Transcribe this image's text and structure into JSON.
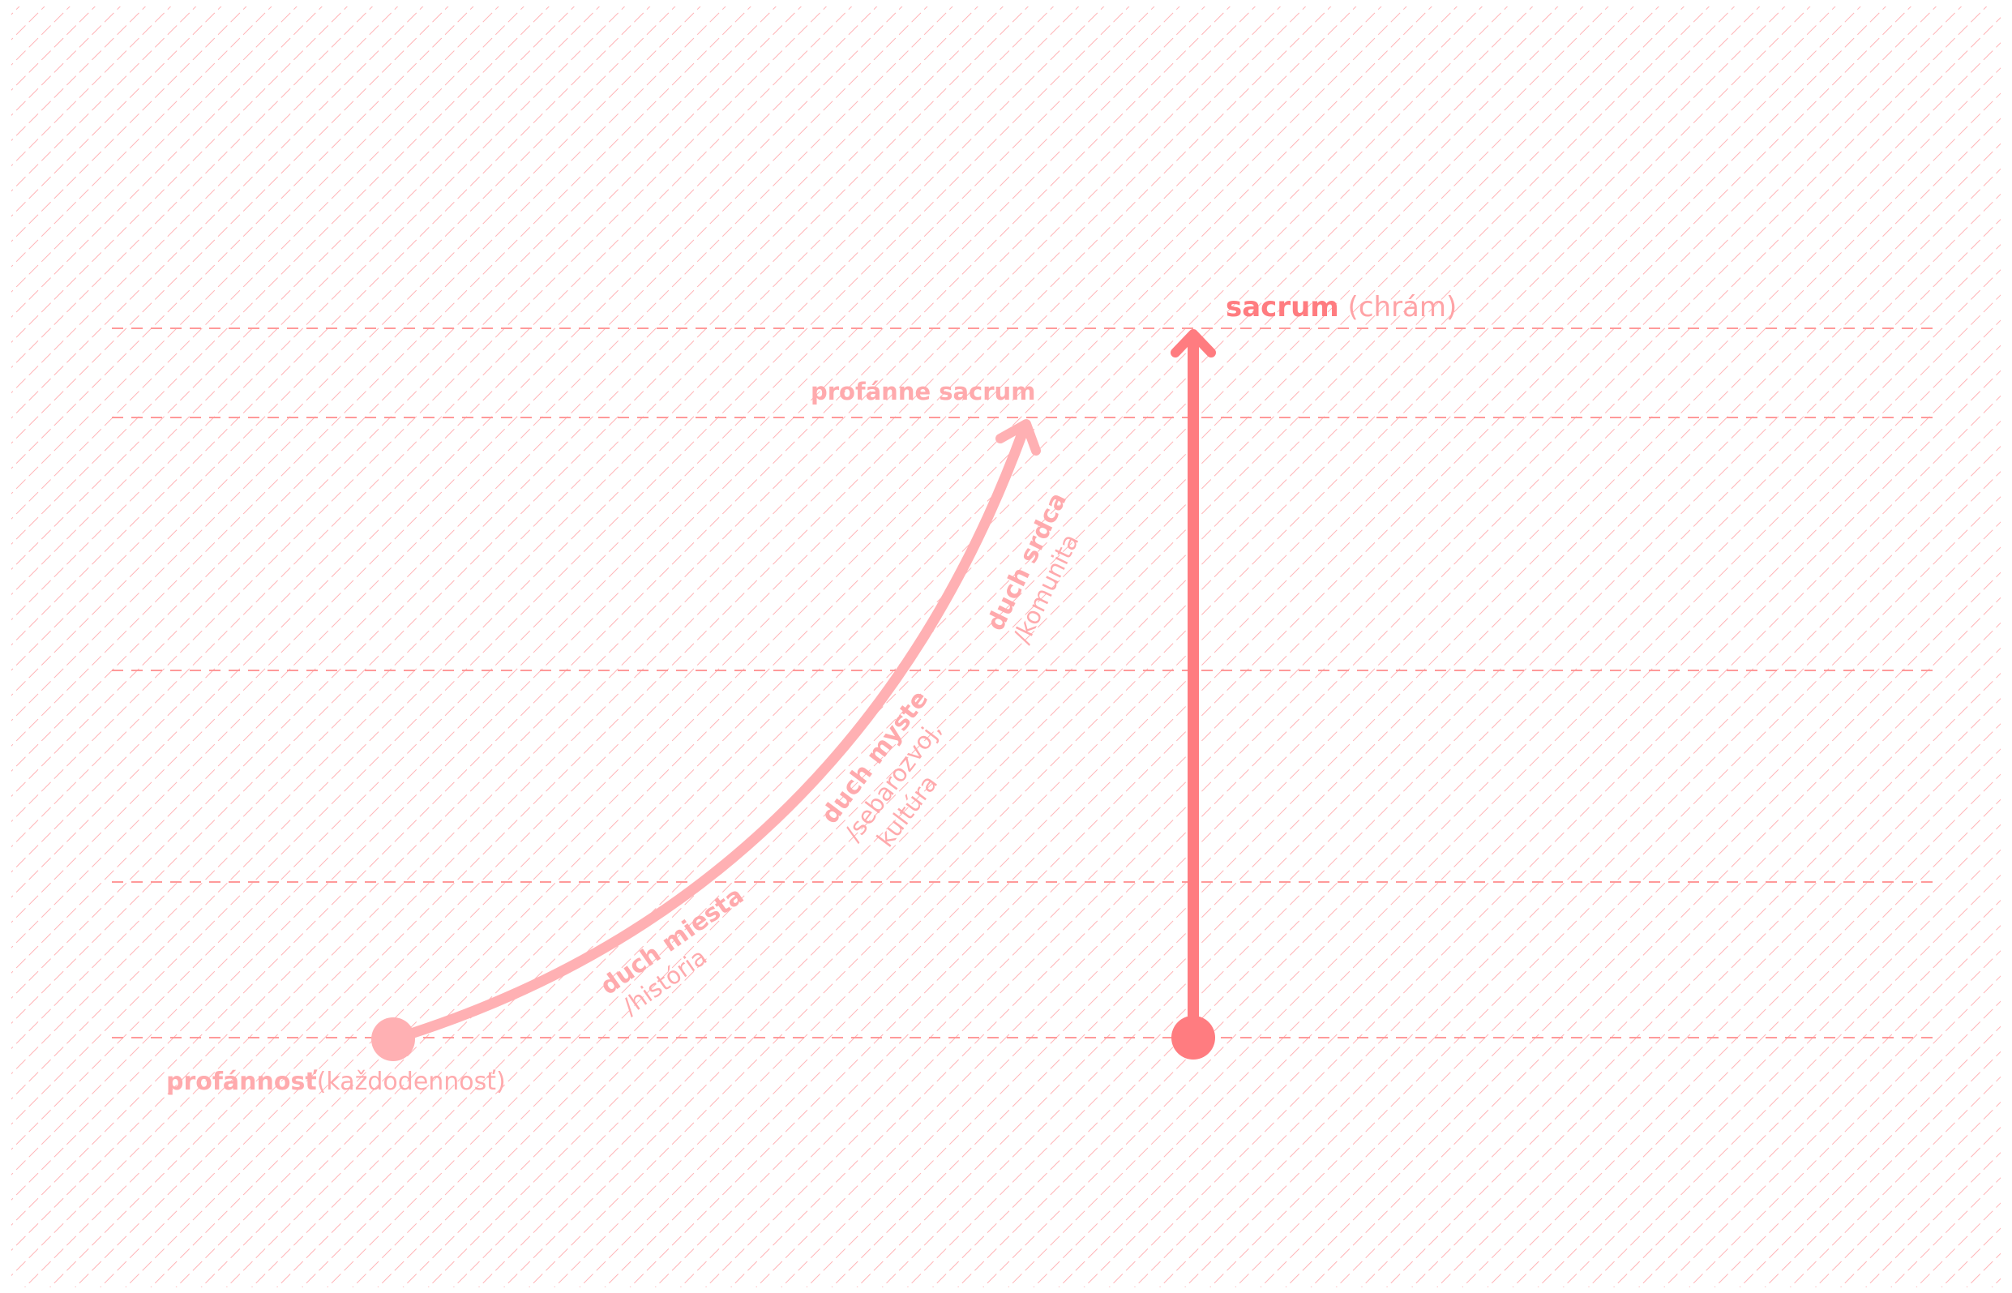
{
  "colors": {
    "hatch": "#ffb3b6",
    "guide": "#ff9a9a",
    "main_arrow": "#ff7c80",
    "curve_arrow": "#ffb0b3",
    "text_strong": "#ff7c80",
    "text_soft": "#ffaaad"
  },
  "labels": {
    "sacrum_bold": "sacrum",
    "sacrum_rest": " (chrám)",
    "profanne_sacrum": "profánne sacrum",
    "profannost_bold": "profánnosť",
    "profannost_rest": "(každodennosť)",
    "duch_srdca_bold": "duch srdca",
    "duch_srdca_sub": "/komunita",
    "duch_myste_bold": "duch myste",
    "duch_myste_sub1": "/sebarozvoj,",
    "duch_myste_sub2": "kultúra",
    "duch_miesta_bold": "duch miesta",
    "duch_miesta_sub": "/história"
  }
}
